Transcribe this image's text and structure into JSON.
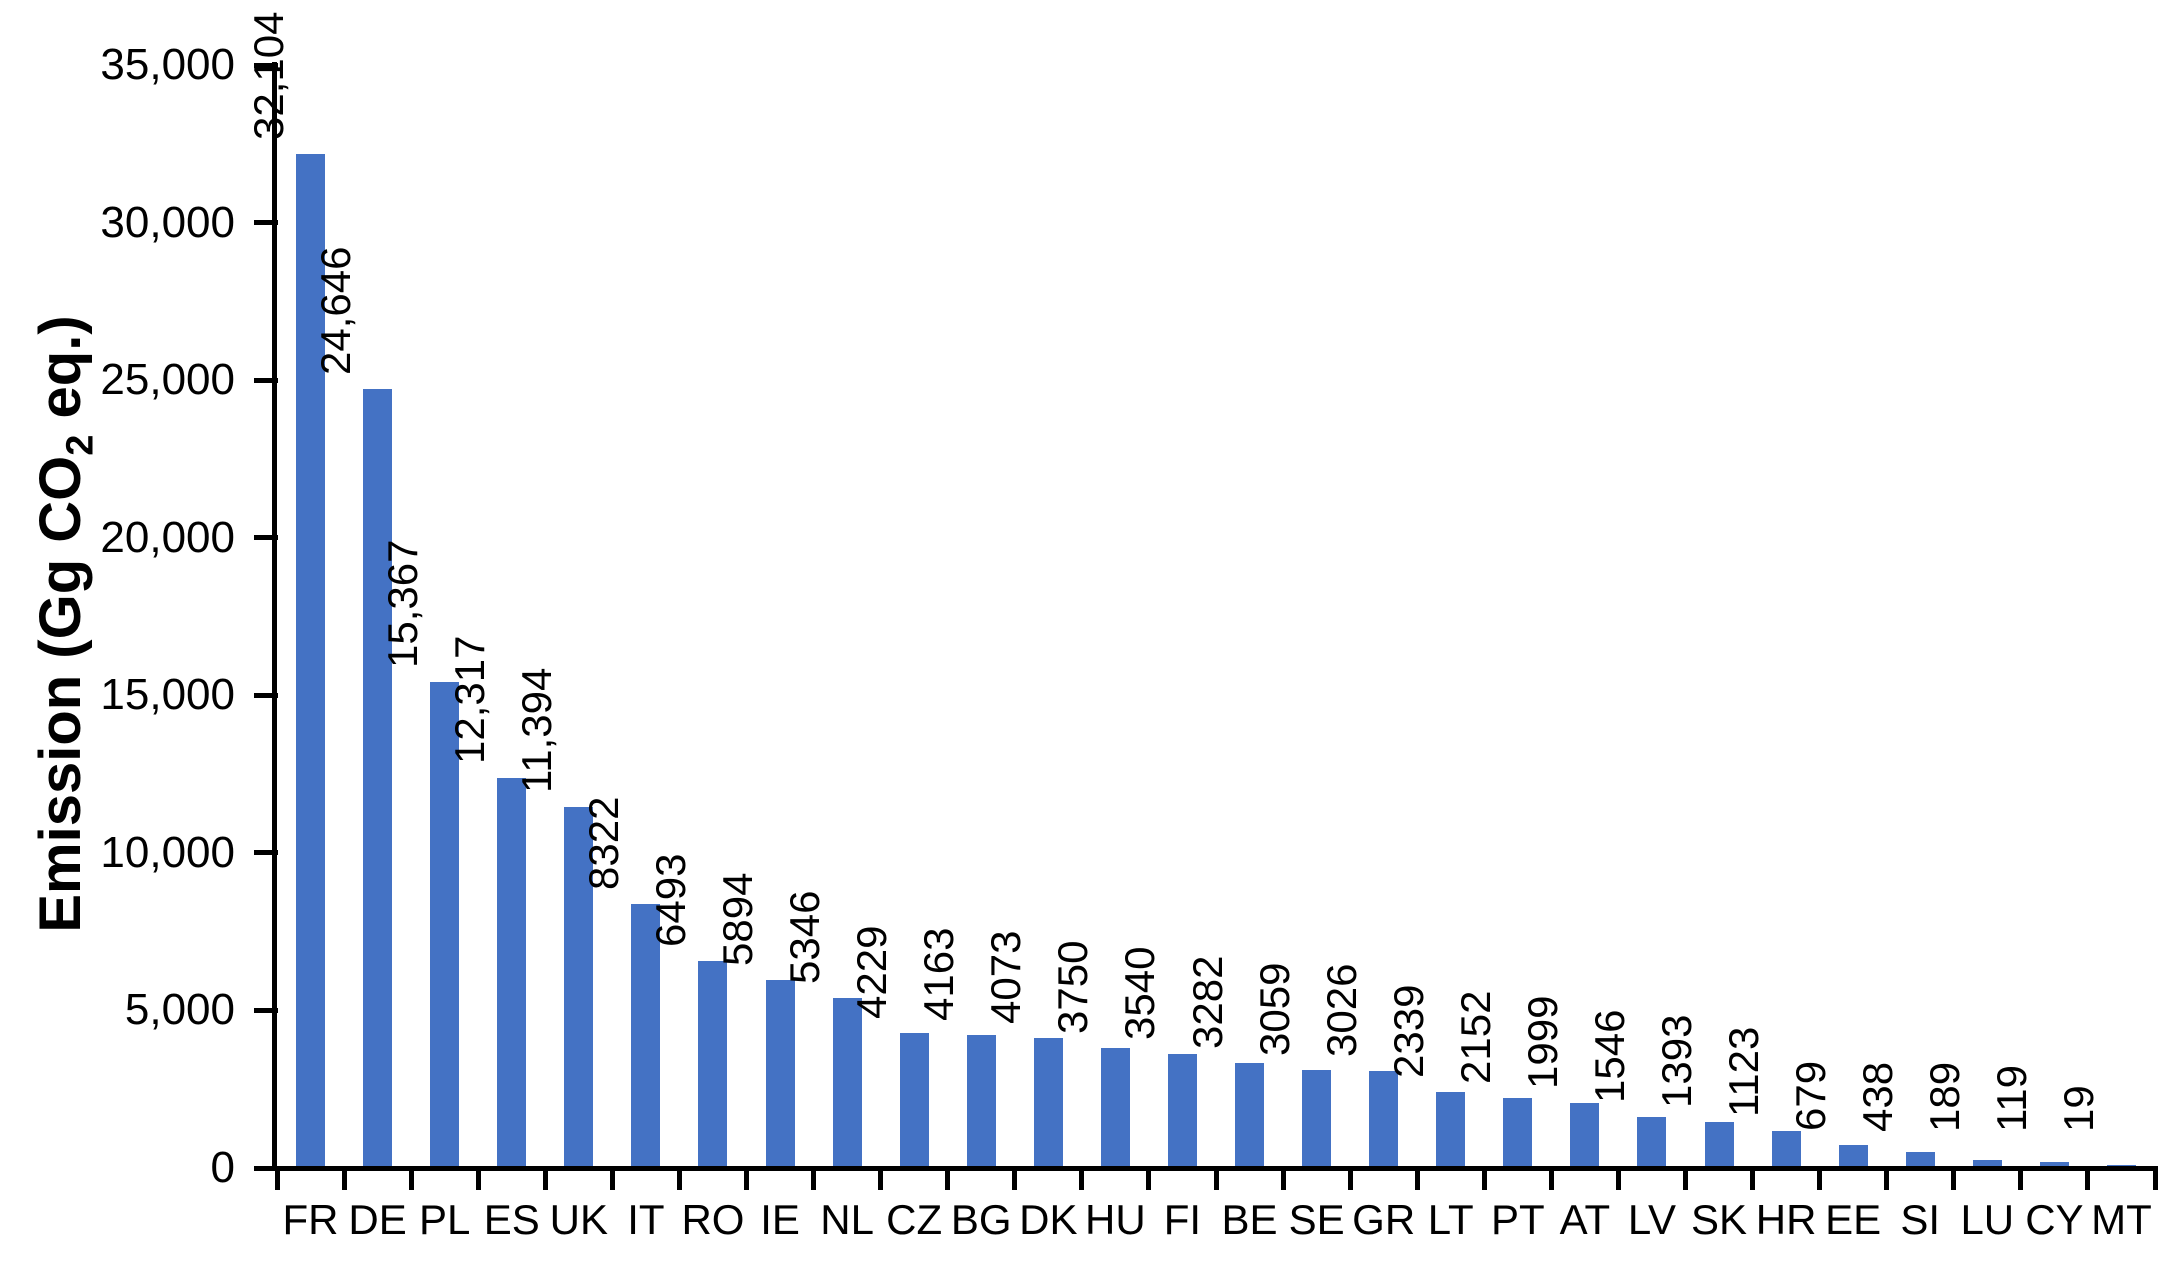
{
  "chart_data": {
    "type": "bar",
    "title": "",
    "xlabel": "",
    "ylabel": "Emission (Gg CO2 eq.)",
    "ylabel_parts": {
      "prefix": "Emission (Gg CO",
      "sub": "2",
      "suffix": " eq.)"
    },
    "categories": [
      "FR",
      "DE",
      "PL",
      "ES",
      "UK",
      "IT",
      "RO",
      "IE",
      "NL",
      "CZ",
      "BG",
      "DK",
      "HU",
      "FI",
      "BE",
      "SE",
      "GR",
      "LT",
      "PT",
      "AT",
      "LV",
      "SK",
      "HR",
      "EE",
      "SI",
      "LU",
      "CY",
      "MT"
    ],
    "values": [
      32104,
      24646,
      15367,
      12317,
      11394,
      8322,
      6493,
      5894,
      5346,
      4229,
      4163,
      4073,
      3750,
      3540,
      3282,
      3059,
      3026,
      2339,
      2152,
      1999,
      1546,
      1393,
      1123,
      679,
      438,
      189,
      119,
      19
    ],
    "value_labels": [
      "32,104",
      "24,646",
      "15,367",
      "12,317",
      "11,394",
      "8322",
      "6493",
      "5894",
      "5346",
      "4229",
      "4163",
      "4073",
      "3750",
      "3540",
      "3282",
      "3059",
      "3026",
      "2339",
      "2152",
      "1999",
      "1546",
      "1393",
      "1123",
      "679",
      "438",
      "189",
      "119",
      "19"
    ],
    "ylim": [
      0,
      35000
    ],
    "ytick_interval": 5000,
    "ytick_values": [
      0,
      5000,
      10000,
      15000,
      20000,
      25000,
      30000,
      35000
    ],
    "ytick_labels": [
      "0",
      "5,000",
      "10,000",
      "15,000",
      "20,000",
      "25,000",
      "30,000",
      "35,000"
    ],
    "bar_color": "#4472C4",
    "axis_color": "#000000",
    "grid": false,
    "legend": false
  }
}
